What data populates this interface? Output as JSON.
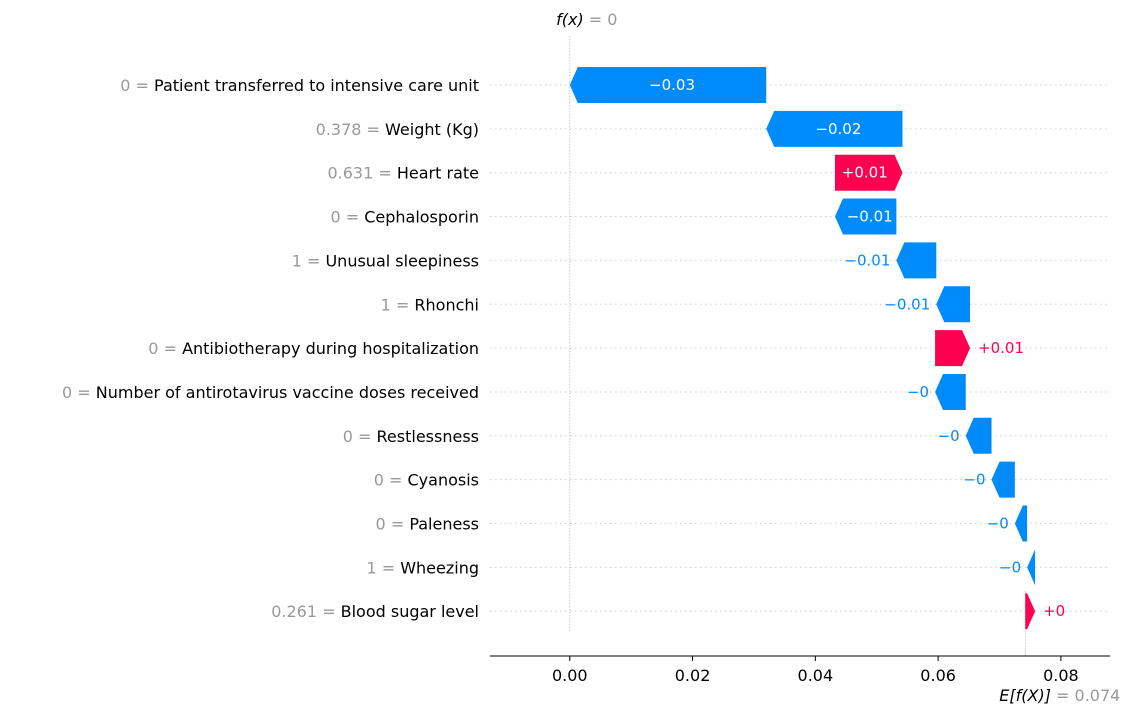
{
  "chart_data": {
    "type": "waterfall",
    "fx_label": "f(x)",
    "fx_value": "0",
    "fx_numeric": 0.0,
    "base_label": "E[f(X)]",
    "base_value": "0.074",
    "base_numeric": 0.0742,
    "xlim": [
      -0.013,
      0.088
    ],
    "xticks": [
      {
        "value": 0.0,
        "label": "0.00"
      },
      {
        "value": 0.02,
        "label": "0.02"
      },
      {
        "value": 0.04,
        "label": "0.04"
      },
      {
        "value": 0.06,
        "label": "0.06"
      },
      {
        "value": 0.08,
        "label": "0.08"
      }
    ],
    "features": [
      {
        "value_label": "0",
        "name": "Patient transferred to intensive care unit",
        "start": 0.032,
        "end": 0.0,
        "label": "−0.03"
      },
      {
        "value_label": "0.378",
        "name": "Weight (Kg)",
        "start": 0.0542,
        "end": 0.032,
        "label": "−0.02"
      },
      {
        "value_label": "0.631",
        "name": "Heart rate",
        "start": 0.0432,
        "end": 0.0542,
        "label": "+0.01"
      },
      {
        "value_label": "0",
        "name": "Cephalosporin",
        "start": 0.0532,
        "end": 0.0432,
        "label": "−0.01"
      },
      {
        "value_label": "1",
        "name": "Unusual sleepiness",
        "start": 0.0597,
        "end": 0.0532,
        "label": "−0.01"
      },
      {
        "value_label": "1",
        "name": "Rhonchi",
        "start": 0.0652,
        "end": 0.0597,
        "label": "−0.01"
      },
      {
        "value_label": "0",
        "name": "Antibiotherapy during hospitalization",
        "start": 0.0595,
        "end": 0.0652,
        "label": "+0.01"
      },
      {
        "value_label": "0",
        "name": "Number of antirotavirus vaccine doses received",
        "start": 0.0645,
        "end": 0.0595,
        "label": "−0"
      },
      {
        "value_label": "0",
        "name": "Restlessness",
        "start": 0.0687,
        "end": 0.0645,
        "label": "−0"
      },
      {
        "value_label": "0",
        "name": "Cyanosis",
        "start": 0.0725,
        "end": 0.0687,
        "label": "−0"
      },
      {
        "value_label": "0",
        "name": "Paleness",
        "start": 0.0745,
        "end": 0.0725,
        "label": "−0"
      },
      {
        "value_label": "1",
        "name": "Wheezing",
        "start": 0.0758,
        "end": 0.0745,
        "label": "−0"
      },
      {
        "value_label": "0.261",
        "name": "Blood sugar level",
        "start": 0.0742,
        "end": 0.0758,
        "label": "+0"
      }
    ],
    "colors": {
      "negative": "#008bfb",
      "positive": "#ff0051",
      "axis": "#000000",
      "muted": "#999999"
    }
  }
}
